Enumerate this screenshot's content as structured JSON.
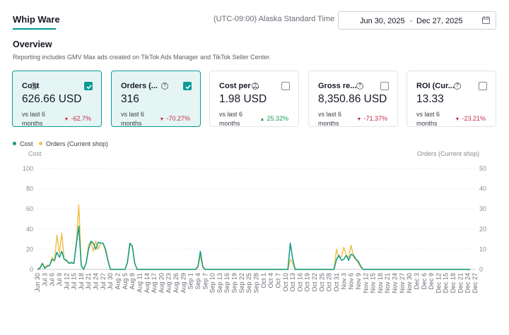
{
  "header": {
    "tab_label": "Whip Ware",
    "timezone": "(UTC-09:00) Alaska Standard Time",
    "date_start": "Jun 30, 2025",
    "date_sep": "-",
    "date_end": "Dec 27, 2025",
    "calendar_icon": "calendar-icon"
  },
  "overview": {
    "title": "Overview",
    "subtitle": "Reporting includes GMV Max ads created on TikTok Ads Manager and TikTok Seller Center."
  },
  "metrics": [
    {
      "label": "Cost",
      "value": "626.66 USD",
      "compare": "vs last 6 months",
      "change": "-62.7%",
      "direction": "down",
      "selected": true
    },
    {
      "label": "Orders (...",
      "value": "316",
      "compare": "vs last 6 months",
      "change": "-70.27%",
      "direction": "down",
      "selected": true
    },
    {
      "label": "Cost per ...",
      "value": "1.98 USD",
      "compare": "vs last 6 months",
      "change": "25.32%",
      "direction": "up",
      "selected": false
    },
    {
      "label": "Gross re...",
      "value": "8,350.86 USD",
      "compare": "vs last 6 months",
      "change": "-71.37%",
      "direction": "down",
      "selected": false
    },
    {
      "label": "ROI (Cur...",
      "value": "13.33",
      "compare": "vs last 6 months",
      "change": "-23.21%",
      "direction": "down",
      "selected": false
    }
  ],
  "colors": {
    "accent": "#009995",
    "cost_series": "#0f9a87",
    "orders_series": "#f2c14e",
    "negative": "#c6294a",
    "positive": "#1c9b57"
  },
  "chart_data": {
    "type": "line",
    "legend": [
      "Cost",
      "Orders (Current shop)"
    ],
    "legend_position": "top-left",
    "y_left_label": "Cost",
    "y_right_label": "Orders (Current shop)",
    "y_left_ticks": [
      "100",
      "80",
      "60",
      "40",
      "20",
      "0"
    ],
    "y_right_ticks": [
      "50",
      "40",
      "30",
      "20",
      "10",
      "0"
    ],
    "ylim_left": [
      0,
      100
    ],
    "ylim_right": [
      0,
      50
    ],
    "grid": true,
    "x_tick_labels": [
      "Jun 30",
      "Jul 3",
      "Jul 6",
      "Jul 9",
      "Jul 12",
      "Jul 15",
      "Jul 18",
      "Jul 21",
      "Jul 24",
      "Jul 27",
      "Jul 30",
      "Aug 2",
      "Aug 5",
      "Aug 8",
      "Aug 11",
      "Aug 14",
      "Aug 17",
      "Aug 20",
      "Aug 23",
      "Aug 26",
      "Aug 29",
      "Sep 1",
      "Sep 4",
      "Sep 7",
      "Sep 10",
      "Sep 13",
      "Sep 16",
      "Sep 19",
      "Sep 22",
      "Sep 25",
      "Sep 28",
      "Oct 1",
      "Oct 4",
      "Oct 7",
      "Oct 10",
      "Oct 13",
      "Oct 16",
      "Oct 19",
      "Oct 22",
      "Oct 25",
      "Oct 28",
      "Oct 31",
      "Nov 3",
      "Nov 6",
      "Nov 9",
      "Nov 12",
      "Nov 15",
      "Nov 18",
      "Nov 21",
      "Nov 24",
      "Nov 27",
      "Nov 30",
      "Dec 3",
      "Dec 6",
      "Dec 9",
      "Dec 12",
      "Dec 15",
      "Dec 18",
      "Dec 21",
      "Dec 24",
      "Dec 27"
    ],
    "series": [
      {
        "name": "Cost",
        "points": [
          [
            0,
            0
          ],
          [
            1,
            1
          ],
          [
            2,
            6
          ],
          [
            3,
            1
          ],
          [
            4,
            3
          ],
          [
            5,
            4
          ],
          [
            6,
            10
          ],
          [
            7,
            9
          ],
          [
            8,
            17
          ],
          [
            9,
            12
          ],
          [
            10,
            18
          ],
          [
            11,
            10
          ],
          [
            12,
            9
          ],
          [
            13,
            6
          ],
          [
            14,
            7
          ],
          [
            15,
            6
          ],
          [
            16,
            25
          ],
          [
            17,
            43
          ],
          [
            18,
            4
          ],
          [
            19,
            0
          ],
          [
            20,
            6
          ],
          [
            21,
            20
          ],
          [
            22,
            28
          ],
          [
            23,
            26
          ],
          [
            24,
            20
          ],
          [
            25,
            27
          ],
          [
            26,
            26
          ],
          [
            27,
            26
          ],
          [
            28,
            20
          ],
          [
            29,
            9
          ],
          [
            30,
            0
          ],
          [
            36,
            0
          ],
          [
            37,
            7
          ],
          [
            38,
            26
          ],
          [
            39,
            23
          ],
          [
            40,
            6
          ],
          [
            41,
            0
          ],
          [
            65,
            0
          ],
          [
            66,
            3
          ],
          [
            67,
            18
          ],
          [
            68,
            3
          ],
          [
            69,
            0
          ],
          [
            102,
            0
          ],
          [
            103,
            0
          ],
          [
            104,
            26
          ],
          [
            105,
            10
          ],
          [
            106,
            0
          ],
          [
            121,
            0
          ],
          [
            122,
            0
          ],
          [
            123,
            10
          ],
          [
            124,
            14
          ],
          [
            125,
            9
          ],
          [
            126,
            10
          ],
          [
            127,
            14
          ],
          [
            128,
            9
          ],
          [
            129,
            15
          ],
          [
            130,
            14
          ],
          [
            131,
            10
          ],
          [
            132,
            8
          ],
          [
            133,
            3
          ],
          [
            134,
            0
          ],
          [
            178,
            0
          ]
        ]
      },
      {
        "name": "Orders (Current shop)",
        "points": [
          [
            0,
            0
          ],
          [
            1,
            1
          ],
          [
            2,
            3
          ],
          [
            3,
            1
          ],
          [
            4,
            2
          ],
          [
            5,
            2
          ],
          [
            6,
            6
          ],
          [
            7,
            4
          ],
          [
            8,
            17
          ],
          [
            9,
            8
          ],
          [
            10,
            18
          ],
          [
            11,
            5
          ],
          [
            12,
            4
          ],
          [
            13,
            3
          ],
          [
            14,
            3
          ],
          [
            15,
            3
          ],
          [
            16,
            14
          ],
          [
            17,
            32
          ],
          [
            18,
            2
          ],
          [
            19,
            0
          ],
          [
            20,
            3
          ],
          [
            21,
            12
          ],
          [
            22,
            14
          ],
          [
            23,
            9
          ],
          [
            24,
            14
          ],
          [
            25,
            10
          ],
          [
            26,
            13
          ],
          [
            27,
            13
          ],
          [
            28,
            9
          ],
          [
            29,
            4
          ],
          [
            30,
            0
          ],
          [
            36,
            0
          ],
          [
            37,
            3
          ],
          [
            38,
            12
          ],
          [
            39,
            12
          ],
          [
            40,
            3
          ],
          [
            41,
            0
          ],
          [
            65,
            0
          ],
          [
            66,
            1
          ],
          [
            67,
            7
          ],
          [
            68,
            1
          ],
          [
            69,
            0
          ],
          [
            102,
            0
          ],
          [
            103,
            0
          ],
          [
            104,
            5
          ],
          [
            105,
            3
          ],
          [
            106,
            0
          ],
          [
            121,
            0
          ],
          [
            122,
            0
          ],
          [
            123,
            10
          ],
          [
            124,
            6
          ],
          [
            125,
            6
          ],
          [
            126,
            11
          ],
          [
            127,
            7
          ],
          [
            128,
            6
          ],
          [
            129,
            12
          ],
          [
            130,
            6
          ],
          [
            131,
            5
          ],
          [
            132,
            3
          ],
          [
            133,
            1
          ],
          [
            134,
            0
          ],
          [
            178,
            0
          ]
        ]
      }
    ]
  }
}
